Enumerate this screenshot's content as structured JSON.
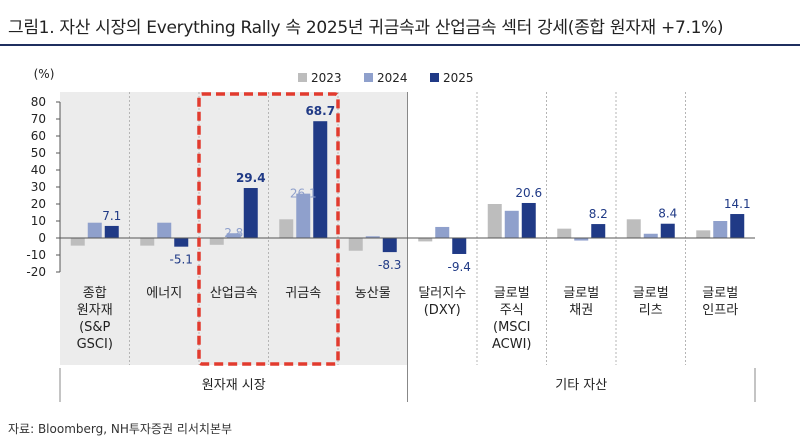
{
  "title": "그림1. 자산 시장의 Everything Rally 속 2025년 귀금속과 산업금속 섹터 강세(종합 원자재 +7.1%)",
  "source": "자료: Bloomberg, NH투자증권 리서치본부",
  "colors": {
    "2023": "#bdbdbd",
    "2024": "#8fa0cc",
    "2025": "#203a86",
    "highlight_box": "#e23b2e",
    "shade": "#ececec"
  },
  "chart_data": {
    "type": "bar",
    "unit_label": "(%)",
    "ylim": [
      -20,
      80
    ],
    "yticks": [
      -20,
      -10,
      0,
      10,
      20,
      30,
      40,
      50,
      60,
      70,
      80
    ],
    "categories": [
      [
        "종합",
        "원자재",
        "(S&P",
        "GSCI)"
      ],
      [
        "에너지"
      ],
      [
        "산업금속"
      ],
      [
        "귀금속"
      ],
      [
        "농산물"
      ],
      [
        "달러지수",
        "(DXY)"
      ],
      [
        "글로벌",
        "주식",
        "(MSCI",
        "ACWI)"
      ],
      [
        "글로벌",
        "채권"
      ],
      [
        "글로벌",
        "리츠"
      ],
      [
        "글로벌",
        "인프라"
      ]
    ],
    "series": [
      {
        "name": "2023",
        "values": [
          -4.5,
          -4.5,
          -4.0,
          11.0,
          -7.5,
          -2.0,
          20.0,
          5.5,
          11.0,
          4.5
        ]
      },
      {
        "name": "2024",
        "values": [
          9.0,
          9.0,
          2.8,
          26.1,
          1.0,
          6.5,
          16.0,
          -1.5,
          2.5,
          10.0
        ]
      },
      {
        "name": "2025",
        "values": [
          7.1,
          -5.1,
          29.4,
          68.7,
          -8.3,
          -9.4,
          20.6,
          8.2,
          8.4,
          14.1
        ]
      }
    ],
    "data_labels": [
      {
        "index": 0,
        "series": "2025",
        "text": "7.1"
      },
      {
        "index": 1,
        "series": "2025",
        "text": "-5.1"
      },
      {
        "index": 2,
        "series": "2024",
        "text": "2.8"
      },
      {
        "index": 2,
        "series": "2025",
        "text": "29.4"
      },
      {
        "index": 3,
        "series": "2024",
        "text": "26.1"
      },
      {
        "index": 3,
        "series": "2025",
        "text": "68.7"
      },
      {
        "index": 4,
        "series": "2025",
        "text": "-8.3"
      },
      {
        "index": 5,
        "series": "2025",
        "text": "-9.4"
      },
      {
        "index": 6,
        "series": "2025",
        "text": "20.6"
      },
      {
        "index": 7,
        "series": "2025",
        "text": "8.2"
      },
      {
        "index": 8,
        "series": "2025",
        "text": "8.4"
      },
      {
        "index": 9,
        "series": "2025",
        "text": "14.1"
      }
    ],
    "groups": [
      {
        "label": "원자재 시장",
        "from": 0,
        "to": 4,
        "shaded": true
      },
      {
        "label": "기타 자산",
        "from": 5,
        "to": 9,
        "shaded": false
      }
    ],
    "highlight": {
      "from": 2,
      "to": 3
    },
    "legend": "top-center"
  }
}
